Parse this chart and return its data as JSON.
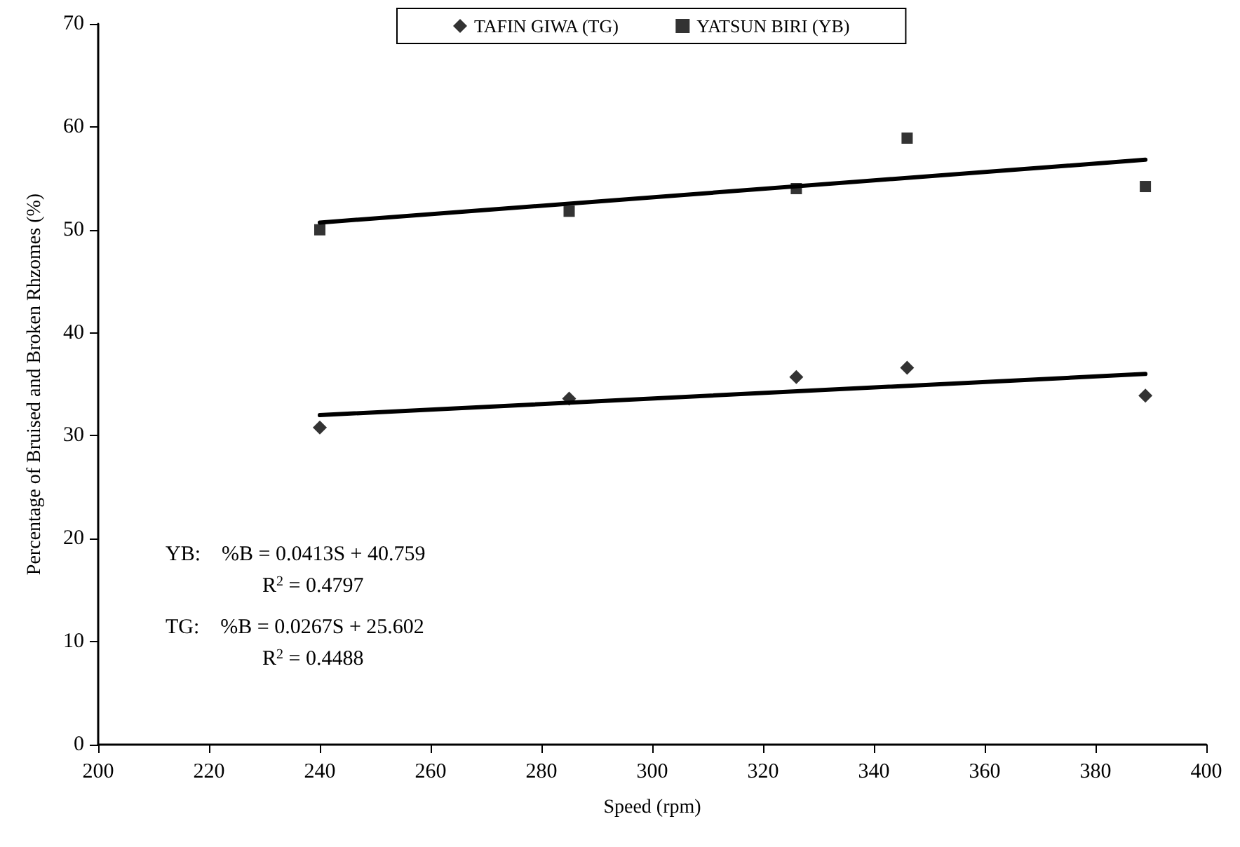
{
  "chart_data": {
    "type": "scatter",
    "xlabel": "Speed (rpm)",
    "ylabel": "Percentage of Bruised and Broken Rhzomes (%)",
    "xlim": [
      200,
      400
    ],
    "xticks": [
      200,
      220,
      240,
      260,
      280,
      300,
      320,
      340,
      360,
      380,
      400
    ],
    "ylim": [
      0,
      70
    ],
    "yticks": [
      0,
      10,
      20,
      30,
      40,
      50,
      60,
      70
    ],
    "grid": false,
    "legend": "top",
    "series": [
      {
        "name": "TAFIN GIWA (TG)",
        "color": "#000000",
        "marker": "diamond",
        "x": [
          240,
          285,
          326,
          346,
          389
        ],
        "values": [
          30.8,
          33.6,
          35.7,
          36.6,
          33.9
        ]
      },
      {
        "name": "YATSUN BIRI (YB)",
        "color": "#000000",
        "marker": "square",
        "x": [
          240,
          285,
          326,
          346,
          389
        ],
        "values": [
          50.0,
          51.8,
          54.0,
          58.9,
          54.2
        ]
      },
      {
        "type": "line",
        "color": "#000000",
        "marker": "none",
        "x": [
          240,
          389
        ],
        "values": [
          50.7,
          56.8
        ]
      },
      {
        "type": "line",
        "color": "#000000",
        "marker": "none",
        "x": [
          240,
          389
        ],
        "values": [
          32.0,
          36.0
        ]
      }
    ],
    "annotations": [
      "YB:    %B = 0.0413S + 40.759",
      "R$^{2}$ = 0.4797",
      "TG:    %B = 0.0267S + 25.602",
      "R$^{2}$ = 0.4488"
    ]
  }
}
